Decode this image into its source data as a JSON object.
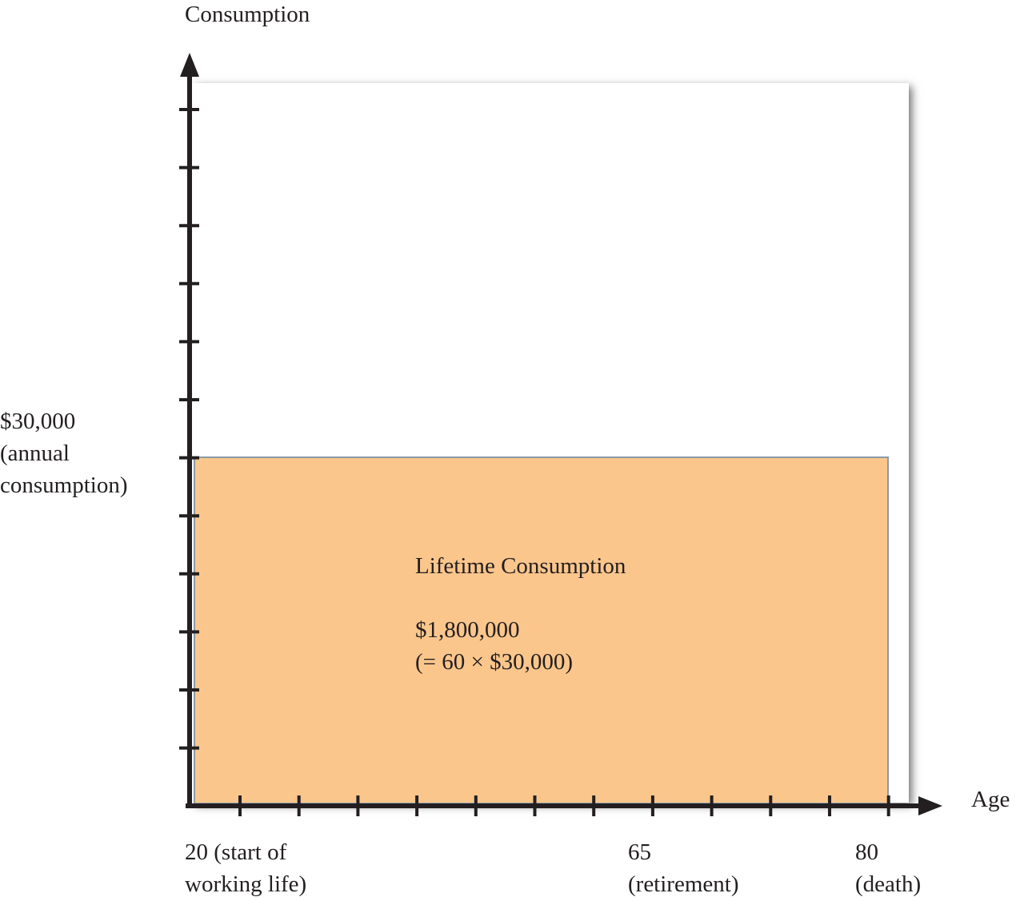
{
  "chart_data": {
    "type": "area",
    "title": "",
    "xlabel": "Age",
    "ylabel": "Consumption",
    "x": [
      20,
      80
    ],
    "values": [
      30000,
      30000
    ],
    "xlim": [
      20,
      80
    ],
    "x_ticks": [
      {
        "value": 20,
        "line1": "20 (start of",
        "line2": "working life)"
      },
      {
        "value": 65,
        "line1": "65",
        "line2": "(retirement)"
      },
      {
        "value": 80,
        "line1": "80",
        "line2": "(death)"
      }
    ],
    "y_label_lines": [
      "$30,000",
      "(annual",
      "consumption)"
    ],
    "region_label": "Lifetime Consumption",
    "annotation_total": "$1,800,000",
    "annotation_formula": "(= 60 × $30,000)",
    "colors": {
      "fill": "#fbc68c",
      "fill_stroke": "#8a9aa6",
      "axis": "#231f20"
    }
  }
}
